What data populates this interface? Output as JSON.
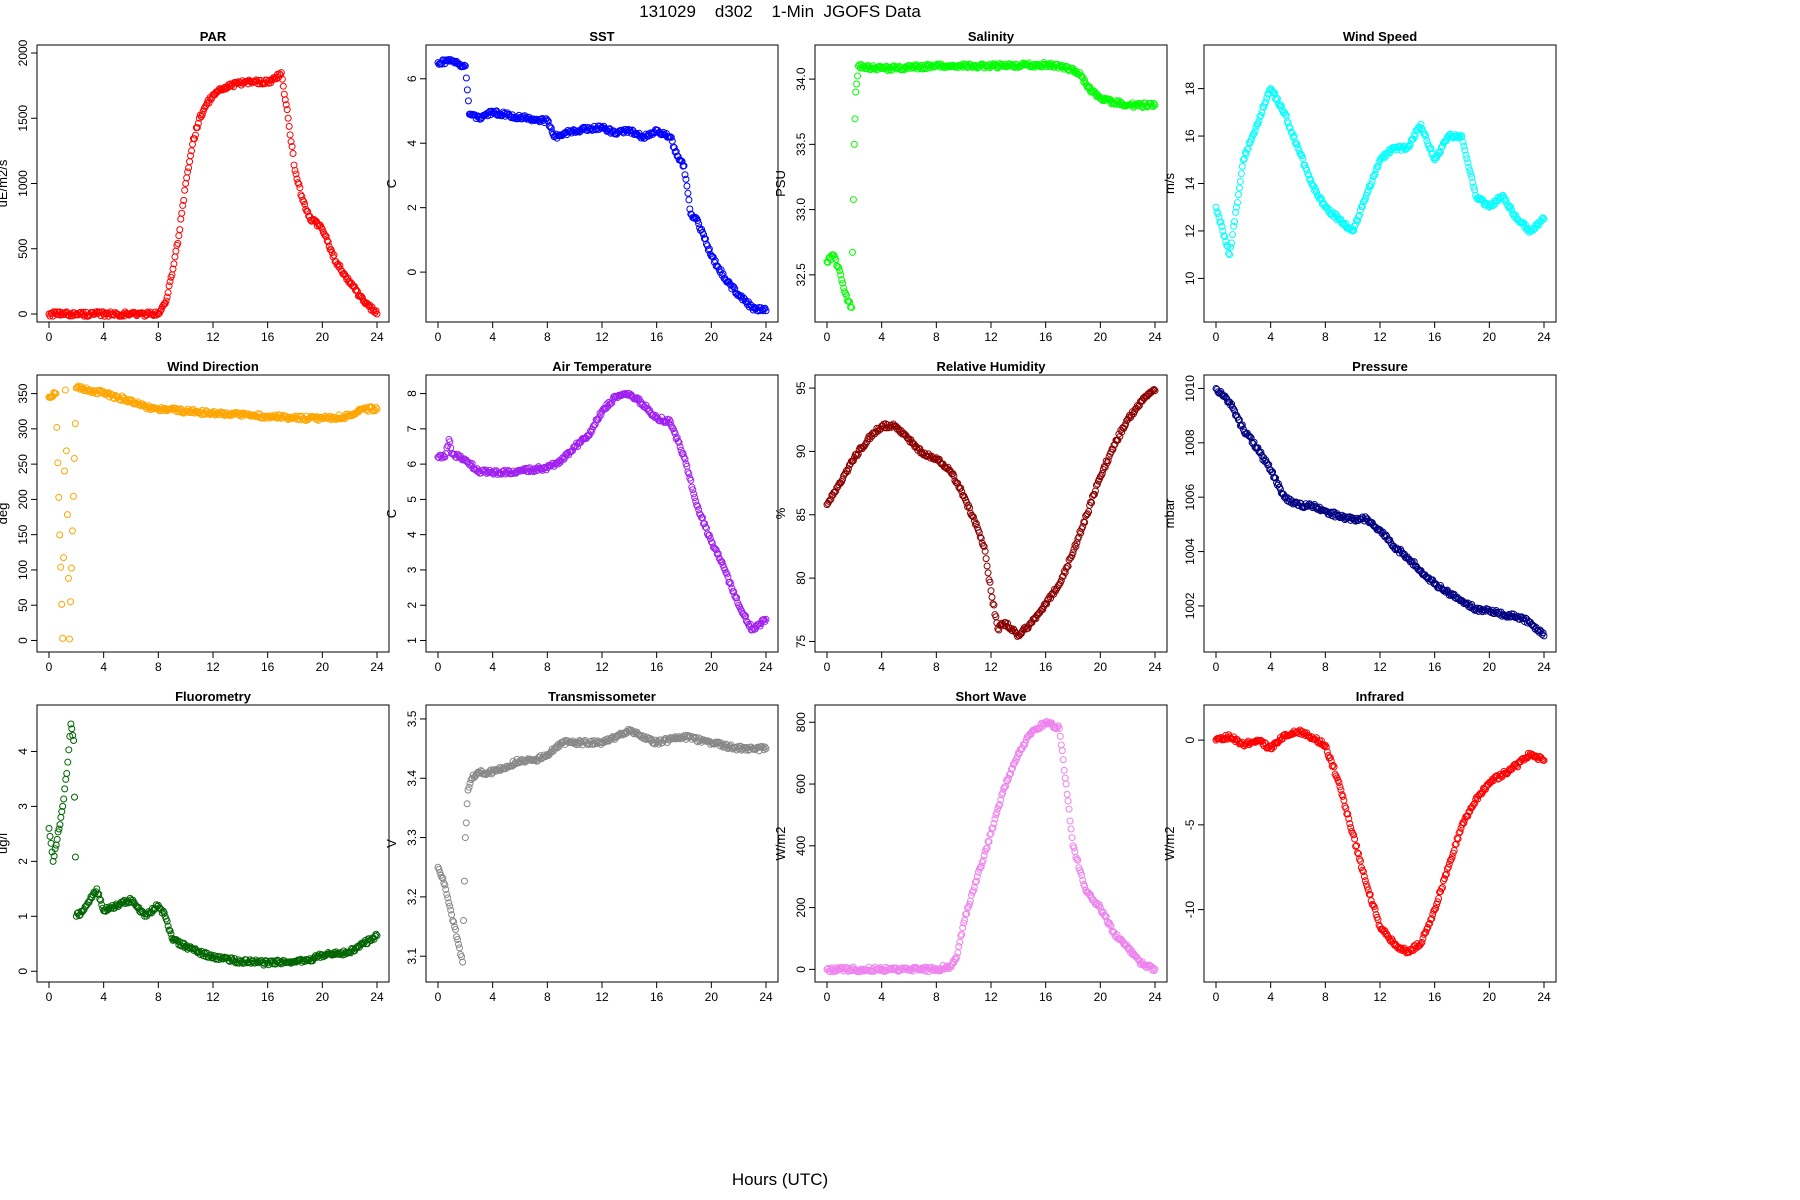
{
  "figure": {
    "title": "131029    d302    1-Min  JGOFS Data",
    "xlabel": "Hours (UTC)"
  },
  "chart_data": [
    {
      "type": "scatter",
      "title": "PAR",
      "ylabel": "uE/m2/s",
      "color": "#ff0000",
      "xlim": [
        0,
        24
      ],
      "ylim": [
        0,
        2000
      ],
      "xticks": [
        0,
        4,
        8,
        12,
        16,
        20,
        24
      ],
      "yticks": [
        0,
        500,
        1000,
        1500,
        2000
      ],
      "xtick_labels": [
        "0",
        "4",
        "8",
        "12",
        "16",
        "20",
        "24"
      ],
      "ytick_labels": [
        "0",
        "500",
        "1000",
        "1500",
        "2000"
      ],
      "x": [
        0,
        2,
        4,
        6,
        8,
        8.5,
        9,
        9.5,
        10,
        10.5,
        11,
        11.5,
        12,
        13,
        14,
        15,
        16,
        16.5,
        17,
        17.5,
        18,
        18.5,
        19,
        20,
        21,
        22,
        23,
        24
      ],
      "y": [
        0,
        0,
        0,
        0,
        0,
        80,
        300,
        600,
        1000,
        1300,
        1500,
        1600,
        1680,
        1740,
        1770,
        1780,
        1780,
        1800,
        1850,
        1500,
        1100,
        900,
        750,
        650,
        400,
        250,
        100,
        0
      ]
    },
    {
      "type": "scatter",
      "title": "SST",
      "ylabel": "C",
      "color": "#0000ff",
      "xlim": [
        0,
        24
      ],
      "ylim": [
        -1.3,
        6.8
      ],
      "xticks": [
        0,
        4,
        8,
        12,
        16,
        20,
        24
      ],
      "yticks": [
        0,
        2,
        4,
        6
      ],
      "xtick_labels": [
        "0",
        "4",
        "8",
        "12",
        "16",
        "20",
        "24"
      ],
      "ytick_labels": [
        "0",
        "2",
        "4",
        "6"
      ],
      "x": [
        0,
        1,
        1.5,
        2,
        2.3,
        3,
        4,
        5,
        6,
        7,
        8,
        8.5,
        10,
        12,
        13,
        14,
        15,
        16,
        17,
        17.5,
        18,
        18.5,
        19,
        20,
        21,
        22,
        23,
        24
      ],
      "y": [
        6.5,
        6.55,
        6.45,
        6.4,
        4.9,
        4.8,
        4.95,
        4.9,
        4.8,
        4.75,
        4.7,
        4.2,
        4.4,
        4.5,
        4.3,
        4.4,
        4.2,
        4.4,
        4.2,
        3.6,
        3.3,
        1.8,
        1.6,
        0.5,
        -0.2,
        -0.7,
        -1.1,
        -1.2
      ]
    },
    {
      "type": "scatter",
      "title": "Salinity",
      "ylabel": "PSU",
      "color": "#00ff00",
      "xlim": [
        0,
        24
      ],
      "ylim": [
        32.2,
        34.2
      ],
      "xticks": [
        0,
        4,
        8,
        12,
        16,
        20,
        24
      ],
      "yticks": [
        32.5,
        33.0,
        33.5,
        34.0
      ],
      "xtick_labels": [
        "0",
        "4",
        "8",
        "12",
        "16",
        "20",
        "24"
      ],
      "ytick_labels": [
        "32.5",
        "33.0",
        "33.5",
        "34.0"
      ],
      "x": [
        0,
        0.5,
        1,
        1.5,
        1.8,
        2.0,
        2.1,
        2.3,
        4,
        8,
        12,
        16,
        17,
        18.5,
        19,
        20,
        22,
        23,
        24
      ],
      "y": [
        32.6,
        32.65,
        32.5,
        32.3,
        32.25,
        33.5,
        33.9,
        34.1,
        34.08,
        34.1,
        34.1,
        34.11,
        34.1,
        34.05,
        33.95,
        33.85,
        33.8,
        33.8,
        33.8
      ]
    },
    {
      "type": "scatter",
      "title": "Wind Speed",
      "ylabel": "m/s",
      "color": "#00ffff",
      "xlim": [
        0,
        24
      ],
      "ylim": [
        8.5,
        19.5
      ],
      "xticks": [
        0,
        4,
        8,
        12,
        16,
        20,
        24
      ],
      "yticks": [
        10,
        12,
        14,
        16,
        18
      ],
      "xtick_labels": [
        "0",
        "4",
        "8",
        "12",
        "16",
        "20",
        "24"
      ],
      "ytick_labels": [
        "10",
        "12",
        "14",
        "16",
        "18"
      ],
      "x": [
        0,
        0.5,
        1,
        1.5,
        2,
        3,
        4,
        5,
        6,
        7,
        8,
        9,
        10,
        11,
        12,
        13,
        14,
        15,
        16,
        17,
        18,
        19,
        20,
        21,
        22,
        23,
        24
      ],
      "y": [
        13,
        12,
        11,
        13,
        15,
        16.5,
        18,
        17,
        15.5,
        14,
        13,
        12.5,
        12,
        13.5,
        15,
        15.5,
        15.5,
        16.5,
        15,
        16,
        16,
        13.5,
        13,
        13.5,
        12.5,
        12,
        12.5
      ]
    },
    {
      "type": "scatter",
      "title": "Wind Direction",
      "ylabel": "deg",
      "color": "#ffa500",
      "xlim": [
        0,
        24
      ],
      "ylim": [
        -5,
        365
      ],
      "xticks": [
        0,
        4,
        8,
        12,
        16,
        20,
        24
      ],
      "yticks": [
        0,
        50,
        100,
        150,
        200,
        250,
        300,
        350
      ],
      "xtick_labels": [
        "0",
        "4",
        "8",
        "12",
        "16",
        "20",
        "24"
      ],
      "ytick_labels": [
        "0",
        "50",
        "100",
        "150",
        "200",
        "250",
        "300",
        "350"
      ],
      "x": [
        0,
        0.5,
        1,
        1.2,
        1.5,
        2,
        3,
        4,
        5,
        6,
        7,
        8,
        10,
        12,
        14,
        16,
        18,
        20,
        22,
        23,
        24
      ],
      "y": [
        345,
        350,
        3,
        355,
        2,
        358,
        355,
        350,
        345,
        340,
        332,
        328,
        325,
        322,
        320,
        318,
        315,
        315,
        318,
        328,
        328
      ]
    },
    {
      "type": "scatter",
      "title": "Air Temperature",
      "ylabel": "C",
      "color": "#a020f0",
      "xlim": [
        0,
        24
      ],
      "ylim": [
        0.9,
        8.3
      ],
      "xticks": [
        0,
        4,
        8,
        12,
        16,
        20,
        24
      ],
      "yticks": [
        1,
        2,
        3,
        4,
        5,
        6,
        7,
        8
      ],
      "xtick_labels": [
        "0",
        "4",
        "8",
        "12",
        "16",
        "20",
        "24"
      ],
      "ytick_labels": [
        "1",
        "2",
        "3",
        "4",
        "5",
        "6",
        "7",
        "8"
      ],
      "x": [
        0,
        0.5,
        0.8,
        1,
        2,
        3,
        4,
        6,
        8,
        9,
        10,
        11,
        12,
        13,
        14,
        15,
        16,
        17,
        18,
        19,
        20,
        21,
        22,
        23,
        24
      ],
      "y": [
        6.2,
        6.2,
        6.7,
        6.3,
        6.1,
        5.8,
        5.75,
        5.8,
        5.9,
        6.1,
        6.5,
        6.8,
        7.5,
        7.9,
        8.0,
        7.7,
        7.3,
        7.2,
        6.2,
        4.8,
        3.8,
        3.0,
        2.0,
        1.3,
        1.6
      ]
    },
    {
      "type": "scatter",
      "title": "Relative Humidity",
      "ylabel": "%",
      "color": "#8b0000",
      "xlim": [
        0,
        24
      ],
      "ylim": [
        74.8,
        95.4
      ],
      "xticks": [
        0,
        4,
        8,
        12,
        16,
        20,
        24
      ],
      "yticks": [
        75,
        80,
        85,
        90,
        95
      ],
      "xtick_labels": [
        "0",
        "4",
        "8",
        "12",
        "16",
        "20",
        "24"
      ],
      "ytick_labels": [
        "75",
        "80",
        "85",
        "90",
        "95"
      ],
      "x": [
        0,
        1,
        2,
        3,
        4,
        5,
        6,
        7,
        8,
        9,
        10,
        11,
        11.5,
        12,
        12.5,
        13,
        14,
        15,
        16,
        17,
        18,
        19,
        20,
        21,
        22,
        23,
        24
      ],
      "y": [
        85.8,
        87.5,
        89.5,
        91,
        92,
        92,
        91,
        89.8,
        89.5,
        88.5,
        86.5,
        84,
        82.5,
        79,
        76,
        76.5,
        75.5,
        76.5,
        78,
        79.5,
        82,
        85,
        88,
        90.5,
        92.5,
        94,
        94.8
      ]
    },
    {
      "type": "scatter",
      "title": "Pressure",
      "ylabel": "mbar",
      "color": "#000080",
      "xlim": [
        0,
        24
      ],
      "ylim": [
        1000.6,
        1010.2
      ],
      "xticks": [
        0,
        4,
        8,
        12,
        16,
        20,
        24
      ],
      "yticks": [
        1002,
        1004,
        1006,
        1008,
        1010
      ],
      "xtick_labels": [
        "0",
        "4",
        "8",
        "12",
        "16",
        "20",
        "24"
      ],
      "ytick_labels": [
        "1002",
        "1004",
        "1006",
        "1008",
        "1010"
      ],
      "x": [
        0,
        1,
        2,
        3,
        4,
        5,
        6,
        7,
        8,
        9,
        10,
        11,
        12,
        13,
        14,
        15,
        16,
        17,
        18,
        19,
        20,
        21,
        22,
        23,
        24
      ],
      "y": [
        1010,
        1009.5,
        1008.5,
        1007.8,
        1007,
        1006,
        1005.7,
        1005.7,
        1005.5,
        1005.3,
        1005.2,
        1005.2,
        1004.8,
        1004.2,
        1003.8,
        1003.3,
        1002.8,
        1002.5,
        1002.2,
        1001.9,
        1001.8,
        1001.7,
        1001.6,
        1001.4,
        1000.9
      ]
    },
    {
      "type": "scatter",
      "title": "Fluorometry",
      "ylabel": "ug/l",
      "color": "#006400",
      "xlim": [
        0,
        24
      ],
      "ylim": [
        -0.05,
        4.7
      ],
      "xticks": [
        0,
        4,
        8,
        12,
        16,
        20,
        24
      ],
      "yticks": [
        0,
        1,
        2,
        3,
        4
      ],
      "xtick_labels": [
        "0",
        "4",
        "8",
        "12",
        "16",
        "20",
        "24"
      ],
      "ytick_labels": [
        "0",
        "1",
        "2",
        "3",
        "4"
      ],
      "x": [
        0,
        0.3,
        0.6,
        1,
        1.3,
        1.6,
        1.8,
        2,
        2.5,
        3,
        3.5,
        4,
        5,
        6,
        7,
        8,
        8.5,
        9,
        10,
        12,
        14,
        16,
        18,
        19,
        20,
        22,
        23,
        24
      ],
      "y": [
        2.6,
        2.0,
        2.4,
        3.0,
        3.6,
        4.5,
        4.2,
        1.0,
        1.1,
        1.3,
        1.5,
        1.1,
        1.2,
        1.3,
        1.0,
        1.2,
        1.0,
        0.6,
        0.45,
        0.25,
        0.18,
        0.15,
        0.18,
        0.2,
        0.3,
        0.35,
        0.5,
        0.65
      ]
    },
    {
      "type": "scatter",
      "title": "Transmissometer",
      "ylabel": "V",
      "color": "#888888",
      "xlim": [
        0,
        24
      ],
      "ylim": [
        3.07,
        3.51
      ],
      "xticks": [
        0,
        4,
        8,
        12,
        16,
        20,
        24
      ],
      "yticks": [
        3.1,
        3.2,
        3.3,
        3.4,
        3.5
      ],
      "xtick_labels": [
        "0",
        "4",
        "8",
        "12",
        "16",
        "20",
        "24"
      ],
      "ytick_labels": [
        "3.1",
        "3.2",
        "3.3",
        "3.4",
        "3.5"
      ],
      "x": [
        0,
        0.5,
        1,
        1.5,
        1.8,
        2,
        2.2,
        2.5,
        3,
        4,
        5,
        6,
        7,
        8,
        9,
        10,
        12,
        14,
        16,
        18,
        20,
        22,
        24
      ],
      "y": [
        3.25,
        3.22,
        3.17,
        3.12,
        3.09,
        3.3,
        3.38,
        3.4,
        3.41,
        3.41,
        3.42,
        3.43,
        3.43,
        3.44,
        3.46,
        3.46,
        3.46,
        3.48,
        3.46,
        3.47,
        3.46,
        3.45,
        3.45
      ]
    },
    {
      "type": "scatter",
      "title": "Short Wave",
      "ylabel": "W/m2",
      "color": "#ee82ee",
      "xlim": [
        0,
        24
      ],
      "ylim": [
        -15,
        830
      ],
      "xticks": [
        0,
        4,
        8,
        12,
        16,
        20,
        24
      ],
      "yticks": [
        0,
        200,
        400,
        600,
        800
      ],
      "xtick_labels": [
        "0",
        "4",
        "8",
        "12",
        "16",
        "20",
        "24"
      ],
      "ytick_labels": [
        "0",
        "200",
        "400",
        "600",
        "800"
      ],
      "x": [
        0,
        2,
        4,
        6,
        8,
        9,
        9.5,
        10,
        11,
        12,
        13,
        14,
        15,
        16,
        17,
        17.5,
        18,
        19,
        20,
        21,
        22,
        23,
        24
      ],
      "y": [
        0,
        0,
        0,
        0,
        0,
        10,
        40,
        150,
        300,
        440,
        590,
        700,
        770,
        800,
        780,
        600,
        400,
        250,
        200,
        120,
        70,
        20,
        0
      ]
    },
    {
      "type": "scatter",
      "title": "Infrared",
      "ylabel": "W/m2",
      "color": "#ff0000",
      "xlim": [
        0,
        24
      ],
      "ylim": [
        -13.8,
        1.6
      ],
      "xticks": [
        0,
        4,
        8,
        12,
        16,
        20,
        24
      ],
      "yticks": [
        -10,
        -5,
        0
      ],
      "xtick_labels": [
        "0",
        "4",
        "8",
        "12",
        "16",
        "20",
        "24"
      ],
      "ytick_labels": [
        "-10",
        "-5",
        "0"
      ],
      "x": [
        0,
        1,
        2,
        3,
        4,
        5,
        6,
        7,
        8,
        9,
        10,
        11,
        12,
        13,
        14,
        15,
        16,
        17,
        18,
        19,
        20,
        21,
        22,
        23,
        24
      ],
      "y": [
        0,
        0.2,
        -0.3,
        0,
        -0.5,
        0.3,
        0.5,
        0.2,
        -0.3,
        -2.5,
        -5.5,
        -8.5,
        -11,
        -12,
        -12.5,
        -12,
        -10,
        -7.5,
        -5,
        -3.5,
        -2.5,
        -2.0,
        -1.5,
        -0.8,
        -1.2
      ]
    }
  ]
}
